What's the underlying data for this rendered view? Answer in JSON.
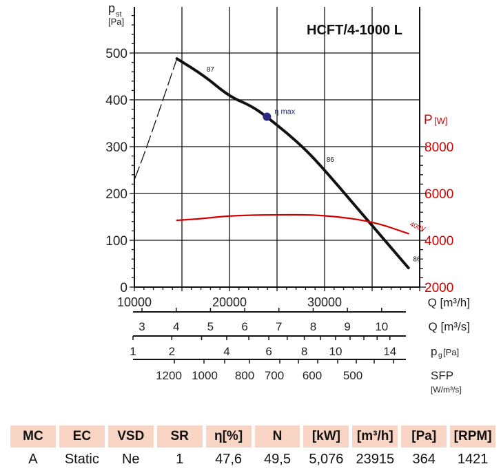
{
  "chart_data": {
    "type": "line",
    "title": "HCFT/4-1000 L",
    "ylabel": {
      "main": "p",
      "sub": "st",
      "unit": "[Pa]"
    },
    "y2label": {
      "main": "P",
      "unit": "[W]"
    },
    "xlim": [
      10000,
      40000
    ],
    "ylim": [
      0,
      500
    ],
    "y2lim": [
      2000,
      12000
    ],
    "grid": true,
    "x_ticks": [
      10000,
      20000,
      30000
    ],
    "x_tick_labels": [
      "10000",
      "20000",
      "30000"
    ],
    "x_label": "Q [m³/h]",
    "y_ticks": [
      0,
      100,
      200,
      300,
      400,
      500
    ],
    "y_tick_labels": [
      "0",
      "100",
      "200",
      "300",
      "400",
      "500"
    ],
    "y2_ticks": [
      2000,
      4000,
      6000,
      8000
    ],
    "y2_tick_labels": [
      "2000",
      "4000",
      "6000",
      "8000"
    ],
    "series": [
      {
        "name": "pressure",
        "color": "#111111",
        "x": [
          14470,
          17370,
          20000,
          22200,
          23935,
          27510,
          30020,
          35050,
          38820
        ],
        "y": [
          488,
          451,
          407,
          388,
          364,
          304,
          250,
          130,
          41
        ],
        "labels": [
          {
            "x": 17600,
            "y": 460,
            "text": "87"
          },
          {
            "x": 30200,
            "y": 268,
            "text": "86"
          },
          {
            "x": 39300,
            "y": 55,
            "text": "86"
          }
        ]
      },
      {
        "name": "stall",
        "color": "#111111",
        "dashed": true,
        "x": [
          10050,
          11330,
          14470
        ],
        "y": [
          232,
          300,
          488
        ]
      },
      {
        "name": "400V",
        "color": "#d40000",
        "axis": "y2",
        "x": [
          14470,
          17000,
          20000,
          25000,
          30000,
          35050,
          38820
        ],
        "y": [
          4853,
          4920,
          5050,
          5097,
          5080,
          4803,
          4285
        ]
      }
    ],
    "power_label": "400V",
    "eta_max": {
      "x": 23935,
      "y": 364,
      "label": "η max",
      "color": "#2a2a80"
    },
    "secondary_axes": [
      {
        "label": "Q [m³/s]",
        "ticks": [
          "3",
          "4",
          "5",
          "6",
          "7",
          "8",
          "9",
          "10"
        ]
      },
      {
        "label": "p",
        "sub": "g",
        "unit": "[Pa]",
        "ticks": [
          "1",
          "2",
          "4",
          "6",
          "8",
          "10",
          "14"
        ]
      },
      {
        "label": "SFP",
        "unit": "[W/m³/s]",
        "ticks": [
          "1200",
          "1000",
          "800",
          "700",
          "600",
          "500"
        ]
      }
    ]
  },
  "table": {
    "headers": [
      "MC",
      "EC",
      "VSD",
      "SR",
      "η[%]",
      "N",
      "[kW]",
      "[m³/h]",
      "[Pa]",
      "[RPM]"
    ],
    "values": [
      "A",
      "Static",
      "Ne",
      "1",
      "47,6",
      "49,5",
      "5,076",
      "23915",
      "364",
      "1421"
    ]
  }
}
